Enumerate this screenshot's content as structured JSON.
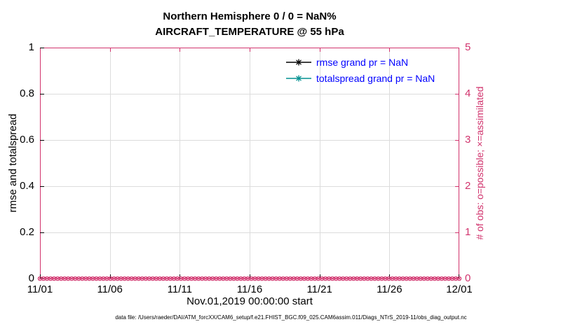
{
  "header": {
    "title_line1": "Northern Hemisphere 0 / 0 = NaN%",
    "title_line2": "AIRCRAFT_TEMPERATURE @ 55 hPa"
  },
  "legend": {
    "text_color": "#0000ff",
    "items": [
      {
        "label": "rmse grand pr = NaN",
        "color": "#000000",
        "marker": "asterisk"
      },
      {
        "label": "totalspread grand pr = NaN",
        "color": "#009090",
        "marker": "asterisk"
      }
    ]
  },
  "footer": {
    "text": "data file: /Users/raeder/DAI/ATM_forcXX/CAM6_setup/f.e21.FHIST_BGC.f09_025.CAM6assim.011/Diags_NTrS_2019-11/obs_diag_output.nc"
  },
  "colors": {
    "obs_axis": "#d1336d",
    "grid": "#dcdcdc",
    "axis_black": "#000000"
  },
  "chart_data": {
    "type": "line",
    "title": "Northern Hemisphere 0 / 0 = NaN%",
    "subtitle": "AIRCRAFT_TEMPERATURE @ 55 hPa",
    "xlabel": "Nov.01,2019 00:00:00 start",
    "ylabel_left": "rmse and totalspread",
    "ylabel_right": "# of obs: o=possible; ×=assimilated",
    "x_ticks": [
      "11/01",
      "11/06",
      "11/11",
      "11/16",
      "11/21",
      "11/26",
      "12/01"
    ],
    "ylim_left": [
      0,
      1
    ],
    "yticks_left": [
      0,
      0.2,
      0.4,
      0.6,
      0.8,
      1
    ],
    "ylim_right": [
      0,
      5
    ],
    "yticks_right": [
      0,
      1,
      2,
      3,
      4,
      5
    ],
    "grid": true,
    "legend_position": "top-center-inside",
    "series": [
      {
        "name": "rmse",
        "grand_mean": "NaN",
        "values": []
      },
      {
        "name": "totalspread",
        "grand_mean": "NaN",
        "values": []
      }
    ],
    "obs": {
      "possible_marker": "o",
      "assimilated_marker": "×",
      "value": 0,
      "n_points": 120
    }
  }
}
